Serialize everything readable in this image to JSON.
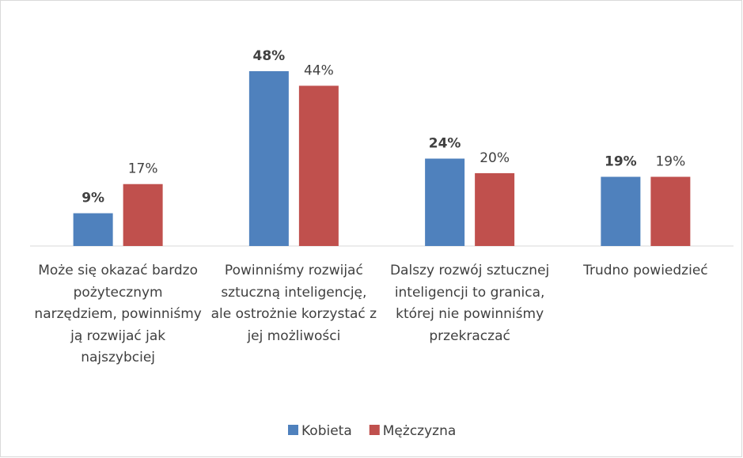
{
  "chart_data": {
    "type": "bar",
    "categories": [
      "Może się okazać bardzo pożytecznym narzędziem, powinniśmy ją rozwijać jak najszybciej",
      "Powinniśmy rozwijać sztuczną inteligencję, ale ostrożnie korzystać z jej możliwości",
      "Dalszy rozwój sztucznej inteligencji to granica, której nie powinniśmy przekraczać",
      "Trudno powiedzieć"
    ],
    "series": [
      {
        "name": "Kobieta",
        "color": "#4f81bd",
        "values": [
          9,
          48,
          24,
          19
        ],
        "value_labels": [
          "9%",
          "48%",
          "24%",
          "19%"
        ]
      },
      {
        "name": "Mężczyzna",
        "color": "#c0504d",
        "values": [
          17,
          44,
          20,
          19
        ],
        "value_labels": [
          "17%",
          "44%",
          "20%",
          "19%"
        ]
      }
    ]
  }
}
